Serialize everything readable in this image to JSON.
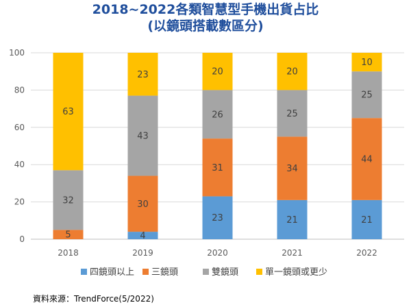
{
  "titles": {
    "line1": "2018~2022各類智慧型手機出貨占比",
    "line2": "(以鏡頭搭載數區分)"
  },
  "source": "資料來源：TrendForce(5/2022)",
  "chart_data": {
    "type": "bar",
    "stacked": true,
    "categories": [
      "2018",
      "2019",
      "2020",
      "2021",
      "2022"
    ],
    "series": [
      {
        "name": "四鏡頭以上",
        "color": "#5b9bd5",
        "values": [
          0,
          4,
          23,
          21,
          21
        ]
      },
      {
        "name": "三鏡頭",
        "color": "#ed7d31",
        "values": [
          5,
          30,
          31,
          34,
          44
        ]
      },
      {
        "name": "雙鏡頭",
        "color": "#a5a5a5",
        "values": [
          32,
          43,
          26,
          25,
          25
        ]
      },
      {
        "name": "單一鏡頭或更少",
        "color": "#ffc000",
        "values": [
          63,
          23,
          20,
          20,
          10
        ]
      }
    ],
    "ylim": [
      0,
      100
    ],
    "yticks": [
      0,
      20,
      40,
      60,
      80,
      100
    ],
    "grid": true,
    "legend": "bottom"
  }
}
